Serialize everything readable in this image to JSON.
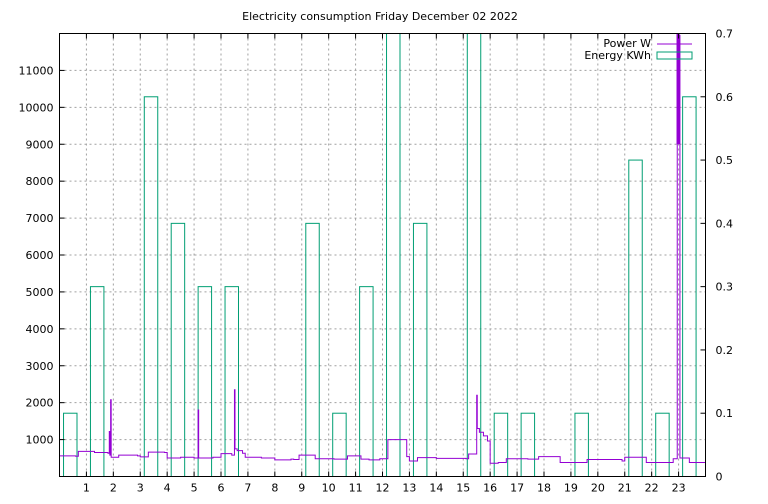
{
  "chart_data": {
    "type": "bar",
    "title": "Electricity consumption Friday December 02 2022",
    "x_ticks": [
      1,
      2,
      3,
      4,
      5,
      6,
      7,
      8,
      9,
      10,
      11,
      12,
      13,
      14,
      15,
      16,
      17,
      18,
      19,
      20,
      21,
      22,
      23
    ],
    "xlim": [
      0,
      24
    ],
    "y_left": {
      "ticks": [
        1000,
        2000,
        3000,
        4000,
        5000,
        6000,
        7000,
        8000,
        9000,
        10000,
        11000
      ],
      "lim": [
        0,
        12000
      ]
    },
    "y_right": {
      "ticks": [
        0,
        0.1,
        0.2,
        0.3,
        0.4,
        0.5,
        0.6,
        0.7
      ],
      "lim": [
        0,
        0.7
      ]
    },
    "grid": true,
    "legend_position": "top-right",
    "colors": {
      "power": "#9400d3",
      "energy": "#009e73"
    },
    "series": [
      {
        "name": "Power W",
        "type": "step-line",
        "axis": "left",
        "points": [
          [
            0,
            560
          ],
          [
            0.6,
            550
          ],
          [
            0.7,
            680
          ],
          [
            1.3,
            650
          ],
          [
            1.8,
            630
          ],
          [
            1.85,
            1220
          ],
          [
            1.87,
            580
          ],
          [
            1.9,
            2080
          ],
          [
            1.92,
            520
          ],
          [
            2.2,
            580
          ],
          [
            2.9,
            560
          ],
          [
            3.0,
            530
          ],
          [
            3.3,
            660
          ],
          [
            3.9,
            650
          ],
          [
            4.0,
            500
          ],
          [
            4.5,
            520
          ],
          [
            5.0,
            500
          ],
          [
            5.15,
            1800
          ],
          [
            5.17,
            500
          ],
          [
            5.7,
            520
          ],
          [
            6.0,
            620
          ],
          [
            6.4,
            580
          ],
          [
            6.5,
            2350
          ],
          [
            6.52,
            750
          ],
          [
            6.6,
            700
          ],
          [
            6.8,
            630
          ],
          [
            6.9,
            520
          ],
          [
            7.5,
            500
          ],
          [
            8.0,
            450
          ],
          [
            8.6,
            470
          ],
          [
            8.7,
            460
          ],
          [
            8.9,
            580
          ],
          [
            9.5,
            480
          ],
          [
            10.2,
            470
          ],
          [
            10.7,
            560
          ],
          [
            11.2,
            470
          ],
          [
            11.5,
            450
          ],
          [
            11.9,
            480
          ],
          [
            12.2,
            1000
          ],
          [
            12.9,
            540
          ],
          [
            13.0,
            420
          ],
          [
            13.3,
            510
          ],
          [
            14.0,
            490
          ],
          [
            15.1,
            480
          ],
          [
            15.2,
            610
          ],
          [
            15.5,
            2200
          ],
          [
            15.52,
            1300
          ],
          [
            15.6,
            1200
          ],
          [
            15.75,
            1100
          ],
          [
            15.9,
            960
          ],
          [
            16.0,
            360
          ],
          [
            16.3,
            380
          ],
          [
            16.6,
            480
          ],
          [
            17.4,
            470
          ],
          [
            17.8,
            540
          ],
          [
            18.6,
            380
          ],
          [
            19.6,
            460
          ],
          [
            20.9,
            420
          ],
          [
            21.0,
            520
          ],
          [
            21.8,
            380
          ],
          [
            22.8,
            480
          ],
          [
            22.95,
            11950
          ],
          [
            23.05,
            500
          ],
          [
            23.4,
            380
          ],
          [
            24.0,
            380
          ]
        ]
      },
      {
        "name": "Energy KWh",
        "type": "bar",
        "axis": "right",
        "bars": [
          {
            "x": 0.0,
            "value": 0.1
          },
          {
            "x": 1.0,
            "value": 0.3
          },
          {
            "x": 3.0,
            "value": 0.6
          },
          {
            "x": 4.0,
            "value": 0.4
          },
          {
            "x": 5.0,
            "value": 0.3
          },
          {
            "x": 6.0,
            "value": 0.3
          },
          {
            "x": 9.0,
            "value": 0.4
          },
          {
            "x": 10.0,
            "value": 0.1
          },
          {
            "x": 11.0,
            "value": 0.3
          },
          {
            "x": 12.0,
            "value": 0.7
          },
          {
            "x": 13.0,
            "value": 0.4
          },
          {
            "x": 15.0,
            "value": 0.7
          },
          {
            "x": 16.0,
            "value": 0.1
          },
          {
            "x": 17.0,
            "value": 0.1
          },
          {
            "x": 19.0,
            "value": 0.1
          },
          {
            "x": 21.0,
            "value": 0.5
          },
          {
            "x": 22.0,
            "value": 0.1
          },
          {
            "x": 23.0,
            "value": 0.6
          }
        ]
      }
    ]
  }
}
